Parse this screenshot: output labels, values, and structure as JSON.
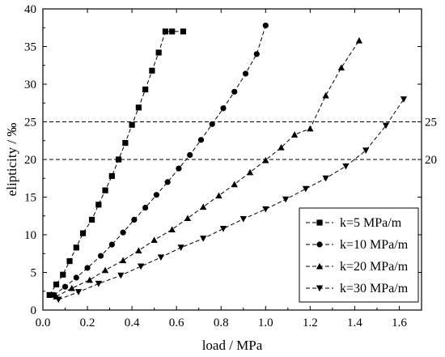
{
  "chart_data": {
    "type": "line",
    "title": "",
    "xlabel": "load / MPa",
    "ylabel": "elipticity / ‰",
    "xlim": [
      0.0,
      1.7
    ],
    "ylim": [
      0,
      40
    ],
    "xticks": [
      "0.0",
      "0.2",
      "0.4",
      "0.6",
      "0.8",
      "1.0",
      "1.2",
      "1.4",
      "1.6"
    ],
    "xtick_values": [
      0.0,
      0.2,
      0.4,
      0.6,
      0.8,
      1.0,
      1.2,
      1.4,
      1.6
    ],
    "yticks": [
      "0",
      "5",
      "10",
      "15",
      "20",
      "25",
      "30",
      "35",
      "40"
    ],
    "ytick_values": [
      0,
      5,
      10,
      15,
      20,
      25,
      30,
      35,
      40
    ],
    "grid": false,
    "legend_position": "bottom-right",
    "reference_lines": [
      {
        "y": 25,
        "label": "25"
      },
      {
        "y": 20,
        "label": "20"
      }
    ],
    "series": [
      {
        "name": "k=5 MPa/m",
        "marker": "square",
        "x": [
          0.03,
          0.06,
          0.09,
          0.12,
          0.15,
          0.18,
          0.22,
          0.25,
          0.28,
          0.31,
          0.34,
          0.37,
          0.4,
          0.43,
          0.46,
          0.49,
          0.52,
          0.55,
          0.58,
          0.63
        ],
        "y": [
          2.0,
          3.4,
          4.7,
          6.5,
          8.3,
          10.2,
          12.0,
          14.0,
          15.9,
          17.8,
          20.0,
          22.2,
          24.6,
          26.9,
          29.3,
          31.8,
          34.2,
          37.0,
          37.0,
          37.0
        ]
      },
      {
        "name": "k=10 MPa/m",
        "marker": "circle",
        "x": [
          0.05,
          0.1,
          0.15,
          0.2,
          0.26,
          0.31,
          0.36,
          0.41,
          0.46,
          0.51,
          0.56,
          0.61,
          0.66,
          0.71,
          0.76,
          0.81,
          0.86,
          0.91,
          0.96,
          1.0
        ],
        "y": [
          2.0,
          3.1,
          4.3,
          5.6,
          7.2,
          8.7,
          10.3,
          12.0,
          13.6,
          15.3,
          17.0,
          18.8,
          20.6,
          22.6,
          24.7,
          26.8,
          29.0,
          31.4,
          34.0,
          37.8
        ]
      },
      {
        "name": "k=20 MPa/m",
        "marker": "triangle-up",
        "x": [
          0.06,
          0.13,
          0.21,
          0.28,
          0.36,
          0.43,
          0.5,
          0.58,
          0.65,
          0.72,
          0.79,
          0.86,
          0.93,
          1.0,
          1.07,
          1.13,
          1.2,
          1.27,
          1.34,
          1.42
        ],
        "y": [
          1.8,
          2.9,
          4.0,
          5.3,
          6.6,
          7.9,
          9.3,
          10.7,
          12.2,
          13.7,
          15.2,
          16.7,
          18.3,
          19.9,
          21.6,
          23.3,
          24.1,
          28.5,
          32.2,
          35.8
        ]
      },
      {
        "name": "k=30 MPa/m",
        "marker": "triangle-down",
        "x": [
          0.07,
          0.16,
          0.25,
          0.35,
          0.44,
          0.53,
          0.62,
          0.72,
          0.81,
          0.9,
          1.0,
          1.09,
          1.18,
          1.27,
          1.36,
          1.45,
          1.54,
          1.62
        ],
        "y": [
          1.4,
          2.4,
          3.5,
          4.6,
          5.8,
          7.0,
          8.3,
          9.5,
          10.8,
          12.1,
          13.4,
          14.7,
          16.1,
          17.5,
          19.1,
          21.2,
          24.5,
          28.0
        ]
      }
    ]
  }
}
